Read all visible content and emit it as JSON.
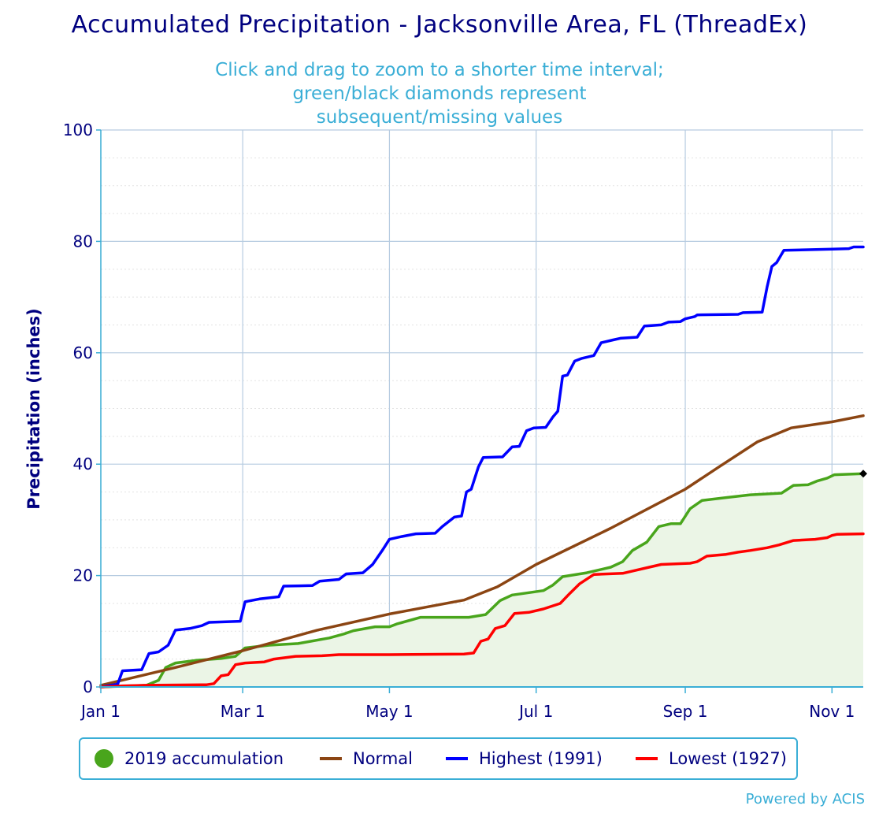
{
  "title": "Accumulated Precipitation - Jacksonville Area, FL (ThreadEx)",
  "subtitle": "Click and drag to zoom to a shorter time interval; green/black diamonds represent subsequent/missing values",
  "credits": "Powered by ACIS",
  "colors": {
    "title": "#00007f",
    "subtitle": "#3aaed6",
    "grid": "#b6cbe0",
    "area_fill": "#ebf5e6",
    "accumulation": "#49a51c",
    "normal": "#8b4513",
    "highest": "#0000ff",
    "lowest": "#ff0000",
    "missing_marker": "#000000"
  },
  "legend": [
    {
      "label": "2019 accumulation",
      "color": "#49a51c",
      "symbol": "circle"
    },
    {
      "label": "Normal",
      "color": "#8b4513",
      "symbol": "line"
    },
    {
      "label": "Highest (1991)",
      "color": "#0000ff",
      "symbol": "line"
    },
    {
      "label": "Lowest (1927)",
      "color": "#ff0000",
      "symbol": "line"
    }
  ],
  "chart_data": {
    "type": "line",
    "title": "Accumulated Precipitation - Jacksonville Area, FL (ThreadEx)",
    "ylabel": "Precipitation (inches)",
    "xlabel": "",
    "ylim": [
      0,
      100
    ],
    "yticks": [
      0,
      20,
      40,
      60,
      80,
      100
    ],
    "x_range": [
      "2019-01-01",
      "2019-11-14"
    ],
    "xticks": [
      {
        "date": "2019-01-01",
        "label": "Jan 1"
      },
      {
        "date": "2019-03-01",
        "label": "Mar 1"
      },
      {
        "date": "2019-05-01",
        "label": "May 1"
      },
      {
        "date": "2019-07-01",
        "label": "Jul 1"
      },
      {
        "date": "2019-09-01",
        "label": "Sep 1"
      },
      {
        "date": "2019-11-01",
        "label": "Nov 1"
      }
    ],
    "grid": true,
    "legend_position": "bottom",
    "series": [
      {
        "name": "2019 accumulation",
        "style": "area",
        "points": [
          [
            "2019-01-01",
            0
          ],
          [
            "2019-01-20",
            0.3
          ],
          [
            "2019-01-25",
            1.2
          ],
          [
            "2019-01-28",
            3.5
          ],
          [
            "2019-02-01",
            4.3
          ],
          [
            "2019-02-10",
            4.8
          ],
          [
            "2019-02-20",
            5.1
          ],
          [
            "2019-02-26",
            5.5
          ],
          [
            "2019-03-02",
            7
          ],
          [
            "2019-03-12",
            7.5
          ],
          [
            "2019-03-24",
            7.8
          ],
          [
            "2019-04-06",
            8.8
          ],
          [
            "2019-04-12",
            9.5
          ],
          [
            "2019-04-16",
            10.1
          ],
          [
            "2019-04-25",
            10.8
          ],
          [
            "2019-05-01",
            10.8
          ],
          [
            "2019-05-04",
            11.3
          ],
          [
            "2019-05-14",
            12.5
          ],
          [
            "2019-06-03",
            12.5
          ],
          [
            "2019-06-10",
            13
          ],
          [
            "2019-06-16",
            15.5
          ],
          [
            "2019-06-21",
            16.5
          ],
          [
            "2019-06-26",
            16.8
          ],
          [
            "2019-07-04",
            17.3
          ],
          [
            "2019-07-08",
            18.3
          ],
          [
            "2019-07-12",
            19.8
          ],
          [
            "2019-07-22",
            20.5
          ],
          [
            "2019-08-01",
            21.5
          ],
          [
            "2019-08-06",
            22.5
          ],
          [
            "2019-08-10",
            24.5
          ],
          [
            "2019-08-16",
            26
          ],
          [
            "2019-08-21",
            28.8
          ],
          [
            "2019-08-26",
            29.3
          ],
          [
            "2019-08-30",
            29.3
          ],
          [
            "2019-09-03",
            32
          ],
          [
            "2019-09-08",
            33.5
          ],
          [
            "2019-09-18",
            34
          ],
          [
            "2019-09-28",
            34.5
          ],
          [
            "2019-10-11",
            34.8
          ],
          [
            "2019-10-16",
            36.2
          ],
          [
            "2019-10-22",
            36.3
          ],
          [
            "2019-10-26",
            37
          ],
          [
            "2019-10-30",
            37.5
          ],
          [
            "2019-11-02",
            38.1
          ],
          [
            "2019-11-14",
            38.3
          ]
        ]
      },
      {
        "name": "Normal",
        "style": "line",
        "points": [
          [
            "2019-01-01",
            0.3
          ],
          [
            "2019-02-01",
            3.5
          ],
          [
            "2019-03-01",
            6.5
          ],
          [
            "2019-04-01",
            10.2
          ],
          [
            "2019-05-01",
            13.1
          ],
          [
            "2019-06-01",
            15.6
          ],
          [
            "2019-06-15",
            18
          ],
          [
            "2019-07-01",
            22
          ],
          [
            "2019-08-01",
            28.5
          ],
          [
            "2019-09-01",
            35.5
          ],
          [
            "2019-09-15",
            39.5
          ],
          [
            "2019-10-01",
            44
          ],
          [
            "2019-10-15",
            46.5
          ],
          [
            "2019-11-01",
            47.6
          ],
          [
            "2019-11-14",
            48.7
          ]
        ]
      },
      {
        "name": "Highest (1991)",
        "style": "line",
        "points": [
          [
            "2019-01-01",
            0
          ],
          [
            "2019-01-08",
            0.5
          ],
          [
            "2019-01-10",
            2.9
          ],
          [
            "2019-01-18",
            3.1
          ],
          [
            "2019-01-21",
            6
          ],
          [
            "2019-01-25",
            6.3
          ],
          [
            "2019-01-29",
            7.5
          ],
          [
            "2019-02-01",
            10.2
          ],
          [
            "2019-02-07",
            10.5
          ],
          [
            "2019-02-12",
            11
          ],
          [
            "2019-02-15",
            11.6
          ],
          [
            "2019-02-28",
            11.8
          ],
          [
            "2019-03-02",
            15.3
          ],
          [
            "2019-03-08",
            15.8
          ],
          [
            "2019-03-16",
            16.2
          ],
          [
            "2019-03-18",
            18.1
          ],
          [
            "2019-03-30",
            18.2
          ],
          [
            "2019-04-02",
            19
          ],
          [
            "2019-04-10",
            19.3
          ],
          [
            "2019-04-13",
            20.3
          ],
          [
            "2019-04-20",
            20.5
          ],
          [
            "2019-04-24",
            22
          ],
          [
            "2019-04-28",
            24.5
          ],
          [
            "2019-05-01",
            26.5
          ],
          [
            "2019-05-06",
            27
          ],
          [
            "2019-05-12",
            27.5
          ],
          [
            "2019-05-20",
            27.6
          ],
          [
            "2019-05-23",
            28.8
          ],
          [
            "2019-05-28",
            30.5
          ],
          [
            "2019-05-31",
            30.7
          ],
          [
            "2019-06-02",
            35
          ],
          [
            "2019-06-04",
            35.5
          ],
          [
            "2019-06-07",
            39.5
          ],
          [
            "2019-06-09",
            41.2
          ],
          [
            "2019-06-17",
            41.3
          ],
          [
            "2019-06-21",
            43.1
          ],
          [
            "2019-06-24",
            43.2
          ],
          [
            "2019-06-27",
            46
          ],
          [
            "2019-06-30",
            46.5
          ],
          [
            "2019-07-05",
            46.6
          ],
          [
            "2019-07-08",
            48.5
          ],
          [
            "2019-07-10",
            49.5
          ],
          [
            "2019-07-12",
            55.8
          ],
          [
            "2019-07-14",
            56
          ],
          [
            "2019-07-17",
            58.5
          ],
          [
            "2019-07-20",
            59
          ],
          [
            "2019-07-25",
            59.5
          ],
          [
            "2019-07-28",
            61.8
          ],
          [
            "2019-08-02",
            62.3
          ],
          [
            "2019-08-05",
            62.6
          ],
          [
            "2019-08-12",
            62.8
          ],
          [
            "2019-08-15",
            64.8
          ],
          [
            "2019-08-22",
            65
          ],
          [
            "2019-08-25",
            65.5
          ],
          [
            "2019-08-30",
            65.6
          ],
          [
            "2019-09-01",
            66.1
          ],
          [
            "2019-09-05",
            66.5
          ],
          [
            "2019-09-06",
            66.8
          ],
          [
            "2019-09-23",
            66.9
          ],
          [
            "2019-09-25",
            67.2
          ],
          [
            "2019-10-03",
            67.3
          ],
          [
            "2019-10-05",
            71.8
          ],
          [
            "2019-10-07",
            75.5
          ],
          [
            "2019-10-09",
            76.2
          ],
          [
            "2019-10-12",
            78.4
          ],
          [
            "2019-11-01",
            78.6
          ],
          [
            "2019-11-08",
            78.7
          ],
          [
            "2019-11-10",
            79
          ],
          [
            "2019-11-14",
            79
          ]
        ]
      },
      {
        "name": "Lowest (1927)",
        "style": "line",
        "points": [
          [
            "2019-01-01",
            0
          ],
          [
            "2019-01-10",
            0.2
          ],
          [
            "2019-01-20",
            0.3
          ],
          [
            "2019-02-14",
            0.4
          ],
          [
            "2019-02-17",
            0.6
          ],
          [
            "2019-02-20",
            2
          ],
          [
            "2019-02-23",
            2.2
          ],
          [
            "2019-02-26",
            4
          ],
          [
            "2019-03-02",
            4.3
          ],
          [
            "2019-03-10",
            4.5
          ],
          [
            "2019-03-14",
            5
          ],
          [
            "2019-03-23",
            5.5
          ],
          [
            "2019-04-03",
            5.6
          ],
          [
            "2019-04-10",
            5.8
          ],
          [
            "2019-05-01",
            5.8
          ],
          [
            "2019-06-01",
            5.9
          ],
          [
            "2019-06-05",
            6.1
          ],
          [
            "2019-06-08",
            8.2
          ],
          [
            "2019-06-11",
            8.6
          ],
          [
            "2019-06-14",
            10.5
          ],
          [
            "2019-06-18",
            11
          ],
          [
            "2019-06-22",
            13.2
          ],
          [
            "2019-06-28",
            13.4
          ],
          [
            "2019-07-04",
            14
          ],
          [
            "2019-07-11",
            15
          ],
          [
            "2019-07-15",
            16.8
          ],
          [
            "2019-07-19",
            18.5
          ],
          [
            "2019-07-25",
            20.2
          ],
          [
            "2019-08-06",
            20.4
          ],
          [
            "2019-08-10",
            20.8
          ],
          [
            "2019-08-17",
            21.5
          ],
          [
            "2019-08-22",
            22
          ],
          [
            "2019-09-03",
            22.2
          ],
          [
            "2019-09-06",
            22.5
          ],
          [
            "2019-09-10",
            23.5
          ],
          [
            "2019-09-18",
            23.8
          ],
          [
            "2019-09-23",
            24.2
          ],
          [
            "2019-09-28",
            24.5
          ],
          [
            "2019-10-05",
            25
          ],
          [
            "2019-10-10",
            25.5
          ],
          [
            "2019-10-16",
            26.3
          ],
          [
            "2019-10-25",
            26.5
          ],
          [
            "2019-10-30",
            26.8
          ],
          [
            "2019-11-01",
            27.2
          ],
          [
            "2019-11-03",
            27.4
          ],
          [
            "2019-11-14",
            27.5
          ]
        ]
      }
    ],
    "markers": [
      {
        "type": "diamond",
        "date": "2019-11-14",
        "value": 38.3,
        "color": "#000000"
      }
    ]
  }
}
